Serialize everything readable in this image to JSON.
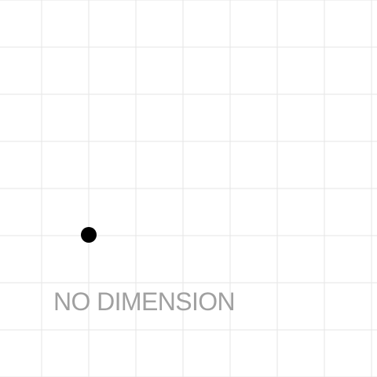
{
  "caption": "NO DIMENSION",
  "colors": {
    "background": "#ffffff",
    "grid": "#e6e6e6",
    "point": "#000000",
    "caption": "#a0a0a0"
  }
}
